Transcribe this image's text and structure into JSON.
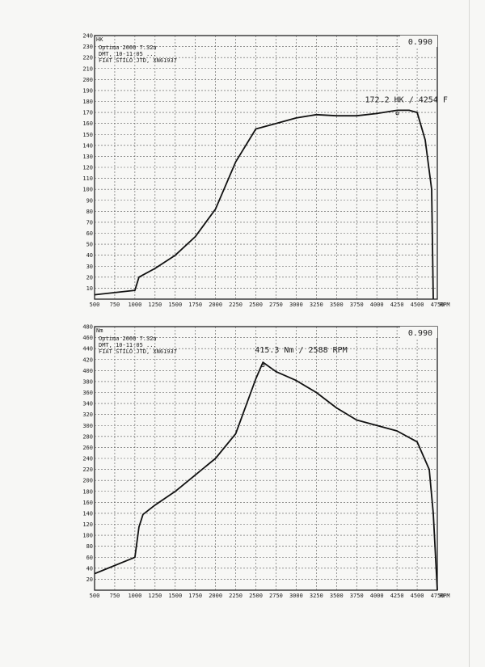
{
  "chart_data": [
    {
      "type": "line",
      "ylabel": "HK",
      "xunit": "RPM",
      "correction_factor": "0.990",
      "header_lines": [
        "Optima 2000 7.32a",
        "DMT, 10-11-05 ...",
        "FIAT STILO JTD, XN61937"
      ],
      "peak_label": "172.2 HK / 4254 F",
      "xlim": [
        500,
        4750
      ],
      "ylim": [
        0,
        240
      ],
      "yticks": [
        10,
        20,
        30,
        40,
        50,
        60,
        70,
        80,
        90,
        100,
        110,
        120,
        130,
        140,
        150,
        160,
        170,
        180,
        190,
        200,
        210,
        220,
        230,
        240
      ],
      "xticks": [
        "500",
        "750",
        "1000",
        "1250",
        "1500",
        "1750",
        "2000",
        "2250",
        "2500",
        "2750",
        "3000",
        "3250",
        "3500",
        "3750",
        "4000",
        "4250",
        "4500",
        "4750"
      ],
      "grid": true,
      "series": [
        {
          "x": [
            500,
            1000,
            1050,
            1100,
            1250,
            1500,
            1750,
            2000,
            2250,
            2500,
            2750,
            3000,
            3250,
            3500,
            3750,
            4000,
            4254,
            4400,
            4500,
            4600,
            4680,
            4700
          ],
          "y": [
            4,
            8,
            20,
            22,
            28,
            40,
            57,
            82,
            125,
            155,
            160,
            165,
            168,
            167,
            167,
            169,
            172,
            172,
            170,
            145,
            100,
            0
          ]
        }
      ]
    },
    {
      "type": "line",
      "ylabel": "Nm",
      "xunit": "RPM",
      "correction_factor": "0.990",
      "header_lines": [
        "Optima 2000 7.32a",
        "DMT, 10-11-05 ...",
        "FIAT STILO JTD, XN61937"
      ],
      "peak_label": "415.3 Nm / 2588 RPM",
      "xlim": [
        500,
        4750
      ],
      "ylim": [
        0,
        480
      ],
      "yticks": [
        20,
        40,
        60,
        80,
        100,
        120,
        140,
        160,
        180,
        200,
        220,
        240,
        260,
        280,
        300,
        320,
        340,
        360,
        380,
        400,
        420,
        440,
        460,
        480
      ],
      "xticks": [
        "500",
        "750",
        "1000",
        "1250",
        "1500",
        "1750",
        "2000",
        "2250",
        "2500",
        "2750",
        "3000",
        "3250",
        "3500",
        "3750",
        "4000",
        "4250",
        "4500",
        "4750"
      ],
      "grid": true,
      "series": [
        {
          "x": [
            500,
            1000,
            1050,
            1100,
            1250,
            1500,
            1750,
            2000,
            2250,
            2500,
            2588,
            2750,
            3000,
            3250,
            3500,
            3750,
            4000,
            4250,
            4500,
            4650,
            4700,
            4750
          ],
          "y": [
            30,
            60,
            115,
            138,
            155,
            180,
            210,
            240,
            285,
            385,
            415,
            398,
            382,
            360,
            332,
            310,
            300,
            290,
            270,
            220,
            140,
            0
          ]
        }
      ]
    }
  ]
}
